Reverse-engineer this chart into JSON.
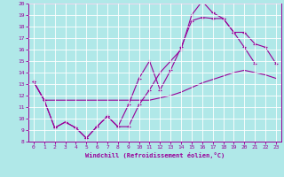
{
  "xlabel": "Windchill (Refroidissement éolien,°C)",
  "bg_color": "#b0e8e8",
  "grid_color": "#c8e8e8",
  "line_color": "#990099",
  "xlim": [
    -0.5,
    23.5
  ],
  "ylim": [
    8,
    20
  ],
  "yticks": [
    8,
    9,
    10,
    11,
    12,
    13,
    14,
    15,
    16,
    17,
    18,
    19,
    20
  ],
  "xticks": [
    0,
    1,
    2,
    3,
    4,
    5,
    6,
    7,
    8,
    9,
    10,
    11,
    12,
    13,
    14,
    15,
    16,
    17,
    18,
    19,
    20,
    21,
    22,
    23
  ],
  "line1_x": [
    0,
    1,
    2,
    3,
    4,
    5,
    6,
    7,
    8,
    9,
    10,
    11,
    12,
    13,
    14,
    15,
    16,
    17,
    18,
    19,
    20,
    21
  ],
  "line1_y": [
    13.2,
    11.6,
    9.2,
    9.7,
    9.2,
    8.3,
    9.3,
    10.2,
    9.3,
    9.3,
    11.2,
    12.5,
    14.0,
    15.0,
    16.0,
    19.0,
    20.2,
    19.2,
    18.7,
    17.5,
    16.2,
    14.8
  ],
  "line2_x": [
    0,
    1,
    2,
    3,
    4,
    5,
    6,
    7,
    8,
    9,
    10,
    11,
    12,
    13,
    14,
    15,
    16,
    17,
    18,
    19,
    20,
    21,
    22,
    23
  ],
  "line2_y": [
    13.2,
    11.6,
    9.2,
    9.7,
    9.2,
    8.3,
    9.3,
    10.2,
    9.3,
    11.2,
    13.5,
    15.0,
    12.5,
    14.2,
    16.2,
    18.5,
    18.8,
    18.7,
    18.7,
    17.5,
    17.5,
    16.5,
    16.2,
    14.8
  ],
  "line3_x": [
    0,
    1,
    2,
    3,
    4,
    5,
    6,
    7,
    8,
    9,
    10,
    11,
    12,
    13,
    14,
    15,
    16,
    17,
    18,
    19,
    20,
    21,
    22,
    23
  ],
  "line3_y": [
    13.2,
    11.6,
    11.6,
    11.6,
    11.6,
    11.6,
    11.6,
    11.6,
    11.6,
    11.6,
    11.6,
    11.6,
    11.8,
    12.0,
    12.3,
    12.7,
    13.1,
    13.4,
    13.7,
    14.0,
    14.2,
    14.0,
    13.8,
    13.5
  ]
}
